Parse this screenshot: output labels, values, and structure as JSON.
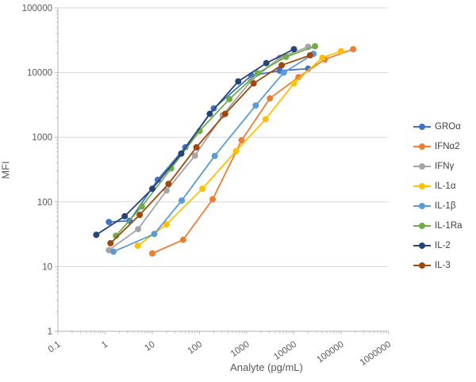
{
  "chart_data": {
    "type": "line",
    "title": "",
    "xlabel": "Analyte (pg/mL)",
    "ylabel": "MFI",
    "x_scale": "log",
    "y_scale": "log",
    "xlim": [
      0.1,
      1000000
    ],
    "ylim": [
      1,
      100000
    ],
    "x_tick_labels": [
      "0.1",
      "1",
      "10",
      "100",
      "1000",
      "10000",
      "100000",
      "1000000"
    ],
    "y_tick_labels": [
      "1",
      "10",
      "100",
      "1000",
      "10000",
      "100000"
    ],
    "grid": "horizontal major gridlines only, minor log tick marks on both axes",
    "legend_position": "right",
    "marker": "circle",
    "colors": {
      "axis_line": "#BFBFBF",
      "gridline": "#D9D9D9",
      "tick_label": "#595959",
      "axis_title": "#595959",
      "legend_text": "#404040"
    },
    "series": [
      {
        "name": "GROα",
        "color": "#4472C4",
        "points": [
          [
            1.2,
            49
          ],
          [
            3.3,
            51
          ],
          [
            13,
            220
          ],
          [
            50,
            700
          ],
          [
            200,
            2800
          ],
          [
            1250,
            9000
          ],
          [
            5000,
            10700
          ],
          [
            20000,
            11500
          ]
        ]
      },
      {
        "name": "IFNα2",
        "color": "#ED7D31",
        "points": [
          [
            10,
            16
          ],
          [
            45,
            26
          ],
          [
            190,
            110
          ],
          [
            780,
            900
          ],
          [
            3100,
            4000
          ],
          [
            12500,
            8500
          ],
          [
            45000,
            16000
          ],
          [
            180000,
            23000
          ]
        ]
      },
      {
        "name": "IFNγ",
        "color": "#A5A5A5",
        "points": [
          [
            1.2,
            18
          ],
          [
            5,
            38
          ],
          [
            20,
            150
          ],
          [
            80,
            520
          ],
          [
            310,
            2200
          ],
          [
            1250,
            7500
          ],
          [
            5000,
            17000
          ],
          [
            20000,
            25000
          ]
        ]
      },
      {
        "name": "IL-1α",
        "color": "#FFC000",
        "points": [
          [
            4.9,
            21
          ],
          [
            20,
            45
          ],
          [
            115,
            160
          ],
          [
            590,
            610
          ],
          [
            2500,
            1900
          ],
          [
            10000,
            6800
          ],
          [
            40000,
            17000
          ],
          [
            100000,
            21500
          ]
        ]
      },
      {
        "name": "IL-1β",
        "color": "#5B9BD5",
        "points": [
          [
            1.5,
            17
          ],
          [
            11,
            32
          ],
          [
            42,
            105
          ],
          [
            210,
            515
          ],
          [
            1550,
            3100
          ],
          [
            6100,
            10000
          ],
          [
            26000,
            19500
          ]
        ]
      },
      {
        "name": "IL-1Ra",
        "color": "#70AD47",
        "points": [
          [
            1.7,
            30
          ],
          [
            6,
            85
          ],
          [
            25,
            330
          ],
          [
            100,
            1250
          ],
          [
            430,
            3900
          ],
          [
            1700,
            9800
          ],
          [
            6800,
            17500
          ],
          [
            28000,
            25500
          ]
        ]
      },
      {
        "name": "IL-2",
        "color": "#264478",
        "points": [
          [
            0.65,
            31
          ],
          [
            2.6,
            60
          ],
          [
            10,
            160
          ],
          [
            41,
            560
          ],
          [
            165,
            2300
          ],
          [
            660,
            7300
          ],
          [
            2600,
            14000
          ],
          [
            10000,
            23000
          ]
        ]
      },
      {
        "name": "IL-3",
        "color": "#9E480E",
        "points": [
          [
            1.3,
            23
          ],
          [
            5.4,
            63
          ],
          [
            22,
            190
          ],
          [
            86,
            700
          ],
          [
            350,
            2300
          ],
          [
            1400,
            6800
          ],
          [
            5500,
            13000
          ],
          [
            22000,
            18500
          ]
        ]
      }
    ]
  }
}
